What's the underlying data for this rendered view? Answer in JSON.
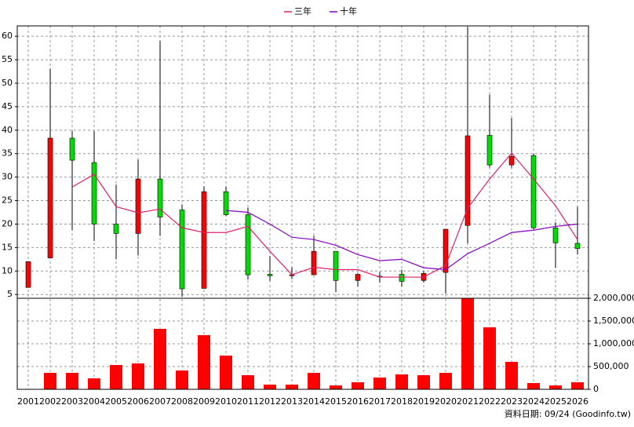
{
  "chart_data": {
    "type": "candlestick",
    "categories": [
      "2001",
      "2002",
      "2003",
      "2004",
      "2005",
      "2006",
      "2007",
      "2008",
      "2009",
      "2010",
      "2011",
      "2012",
      "2013",
      "2014",
      "2015",
      "2016",
      "2017",
      "2018",
      "2019",
      "2020",
      "2021",
      "2022",
      "2023",
      "2024",
      "2025",
      "2026"
    ],
    "ohlc": {
      "up_color": "#ff0000",
      "down_color": "#00dd00",
      "open": [
        6.5,
        12.8,
        38.3,
        33.1,
        20,
        18,
        29.6,
        23,
        6.3,
        26.9,
        22,
        9.3,
        9.0,
        9.2,
        14.2,
        8,
        8.9,
        9.3,
        8,
        9.7,
        19.7,
        38.9,
        32.6,
        34.6,
        19.2,
        15.9
      ],
      "high": [
        12,
        53.1,
        39.8,
        39.8,
        28.4,
        33.7,
        59,
        24.2,
        28,
        28,
        23.5,
        13.2,
        10.8,
        17.5,
        14.2,
        9.5,
        9.8,
        10.3,
        10,
        18.9,
        62,
        47.6,
        42.6,
        35,
        20.4,
        23.7
      ],
      "low": [
        6.5,
        12.8,
        18.7,
        16.4,
        12.5,
        13.3,
        17.5,
        4.5,
        6.3,
        21.7,
        8.2,
        7.9,
        8.3,
        9.2,
        5.5,
        6.7,
        7.5,
        6.7,
        7.5,
        5.2,
        15.9,
        32,
        32,
        18.9,
        10.7,
        13.5
      ],
      "close": [
        12,
        38.3,
        33.6,
        20,
        18,
        29.6,
        21.5,
        6.2,
        26.9,
        22,
        9.2,
        9.0,
        9.2,
        14.2,
        8,
        9.3,
        8.8,
        7.8,
        9.5,
        18.9,
        38.8,
        32.6,
        34.4,
        19.2,
        16,
        14.8
      ]
    },
    "series": [
      {
        "name": "三年",
        "color": "#e0206a",
        "values": [
          null,
          null,
          27.9,
          30.6,
          23.7,
          22.4,
          23.2,
          19.2,
          18.2,
          18.2,
          19.5,
          14.2,
          9.2,
          10.8,
          10.3,
          10.3,
          8.7,
          8.7,
          8.7,
          11.2,
          23.4,
          29.6,
          35.1,
          29.6,
          23.9,
          16.7
        ]
      },
      {
        "name": "十年",
        "color": "#8000c0",
        "values": [
          null,
          null,
          null,
          null,
          null,
          null,
          null,
          null,
          null,
          22.9,
          22.5,
          20,
          17.2,
          16.7,
          15.5,
          13.5,
          12.2,
          12.5,
          10.7,
          10.3,
          13.7,
          15.9,
          18.2,
          18.7,
          19.5,
          20
        ]
      }
    ],
    "volume": {
      "color": "#ff0000",
      "axis": "y2",
      "values": [
        0,
        362000,
        362000,
        241000,
        534000,
        569000,
        1328000,
        414000,
        1190000,
        741000,
        310000,
        103000,
        103000,
        362000,
        86000,
        155000,
        259000,
        328000,
        310000,
        362000,
        2000000,
        1362000,
        603000,
        138000,
        86000,
        155000
      ]
    },
    "ylim": [
      4.2,
      62.2
    ],
    "yticks": [
      5,
      10,
      15,
      20,
      25,
      30,
      35,
      40,
      45,
      50,
      55,
      60
    ],
    "y2lim": [
      0,
      2000000
    ],
    "y2ticks": [
      0,
      {
        "value": 500000,
        "label": "500,000"
      },
      {
        "value": 1000000,
        "label": "1,000,000"
      },
      {
        "value": 1500000,
        "label": "1,500,000"
      },
      {
        "value": 2000000,
        "label": "2,000,000"
      }
    ],
    "grid": true,
    "source": "資料日期: 09/24 (Goodinfo.tw)"
  }
}
